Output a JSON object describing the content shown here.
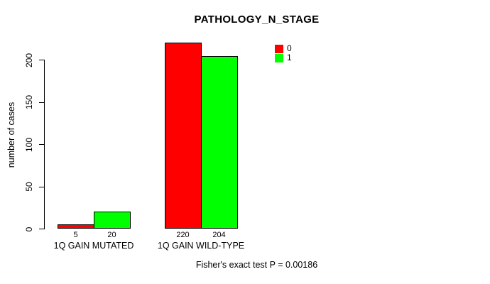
{
  "chart_data": {
    "type": "bar",
    "title": "PATHOLOGY_N_STAGE",
    "ylabel": "number of cases",
    "xlabel": "",
    "categories": [
      "1Q GAIN MUTATED",
      "1Q GAIN WILD-TYPE"
    ],
    "series": [
      {
        "name": "0",
        "color": "#FF0000",
        "values": [
          5,
          220
        ]
      },
      {
        "name": "1",
        "color": "#00FF00",
        "values": [
          20,
          204
        ]
      }
    ],
    "yticks": [
      0,
      50,
      100,
      150,
      200
    ],
    "ylim": [
      0,
      235
    ],
    "grid": false,
    "value_labels_shown": true,
    "legend": {
      "position": "top-right-inside",
      "entries": [
        {
          "label": "0",
          "color": "#FF0000"
        },
        {
          "label": "1",
          "color": "#00FF00"
        }
      ]
    },
    "annotation": "Fisher's exact test P = 0.00186"
  },
  "colors": {
    "background": "#FFFFFF",
    "axis": "#000000",
    "text": "#000000",
    "bar_border": "#000000"
  }
}
